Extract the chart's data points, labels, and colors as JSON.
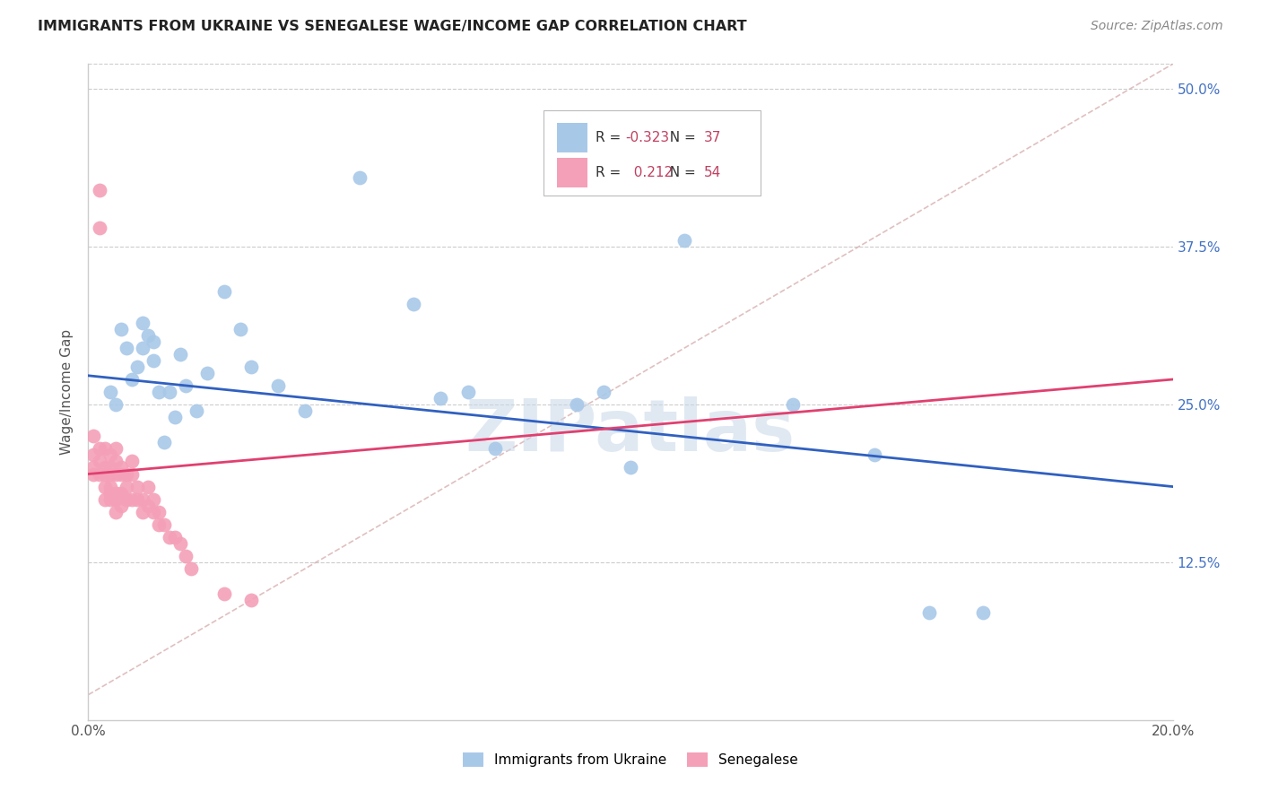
{
  "title": "IMMIGRANTS FROM UKRAINE VS SENEGALESE WAGE/INCOME GAP CORRELATION CHART",
  "source": "Source: ZipAtlas.com",
  "ylabel": "Wage/Income Gap",
  "yticks": [
    0.125,
    0.25,
    0.375,
    0.5
  ],
  "ytick_labels": [
    "12.5%",
    "25.0%",
    "37.5%",
    "50.0%"
  ],
  "xlim": [
    0.0,
    0.2
  ],
  "ylim": [
    0.0,
    0.52
  ],
  "ukraine_R": -0.323,
  "ukraine_N": 37,
  "senegal_R": 0.212,
  "senegal_N": 54,
  "ukraine_color": "#a8c8e8",
  "senegal_color": "#f4a0b8",
  "ukraine_line_color": "#3060c0",
  "senegal_line_color": "#e04070",
  "dashed_color": "#d8b0b0",
  "watermark": "ZIPatlas",
  "ukraine_x": [
    0.004,
    0.005,
    0.006,
    0.007,
    0.008,
    0.009,
    0.01,
    0.01,
    0.011,
    0.012,
    0.012,
    0.013,
    0.014,
    0.015,
    0.016,
    0.017,
    0.018,
    0.02,
    0.022,
    0.025,
    0.028,
    0.03,
    0.035,
    0.04,
    0.05,
    0.06,
    0.065,
    0.07,
    0.075,
    0.09,
    0.095,
    0.1,
    0.11,
    0.13,
    0.145,
    0.155,
    0.165
  ],
  "ukraine_y": [
    0.26,
    0.25,
    0.31,
    0.295,
    0.27,
    0.28,
    0.315,
    0.295,
    0.305,
    0.285,
    0.3,
    0.26,
    0.22,
    0.26,
    0.24,
    0.29,
    0.265,
    0.245,
    0.275,
    0.34,
    0.31,
    0.28,
    0.265,
    0.245,
    0.43,
    0.33,
    0.255,
    0.26,
    0.215,
    0.25,
    0.26,
    0.2,
    0.38,
    0.25,
    0.21,
    0.085,
    0.085
  ],
  "senegal_x": [
    0.001,
    0.001,
    0.001,
    0.001,
    0.002,
    0.002,
    0.002,
    0.002,
    0.002,
    0.003,
    0.003,
    0.003,
    0.003,
    0.003,
    0.004,
    0.004,
    0.004,
    0.004,
    0.004,
    0.004,
    0.005,
    0.005,
    0.005,
    0.005,
    0.005,
    0.005,
    0.006,
    0.006,
    0.006,
    0.006,
    0.007,
    0.007,
    0.007,
    0.008,
    0.008,
    0.008,
    0.009,
    0.009,
    0.01,
    0.01,
    0.011,
    0.011,
    0.012,
    0.012,
    0.013,
    0.013,
    0.014,
    0.015,
    0.016,
    0.017,
    0.018,
    0.019,
    0.025,
    0.03
  ],
  "senegal_y": [
    0.21,
    0.225,
    0.2,
    0.195,
    0.42,
    0.39,
    0.215,
    0.205,
    0.195,
    0.215,
    0.2,
    0.195,
    0.185,
    0.175,
    0.21,
    0.2,
    0.195,
    0.185,
    0.18,
    0.175,
    0.215,
    0.205,
    0.195,
    0.18,
    0.175,
    0.165,
    0.2,
    0.195,
    0.18,
    0.17,
    0.195,
    0.185,
    0.175,
    0.205,
    0.195,
    0.175,
    0.185,
    0.175,
    0.175,
    0.165,
    0.185,
    0.17,
    0.175,
    0.165,
    0.165,
    0.155,
    0.155,
    0.145,
    0.145,
    0.14,
    0.13,
    0.12,
    0.1,
    0.095
  ],
  "ukraine_line_x": [
    0.0,
    0.2
  ],
  "ukraine_line_y": [
    0.273,
    0.185
  ],
  "senegal_line_x": [
    0.0,
    0.2
  ],
  "senegal_line_y": [
    0.195,
    0.27
  ],
  "dashed_line_x": [
    0.0,
    0.2
  ],
  "dashed_line_y": [
    0.02,
    0.52
  ]
}
